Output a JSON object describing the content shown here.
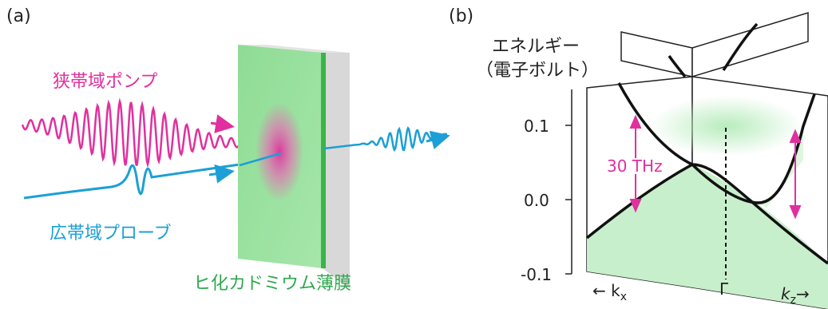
{
  "panel_a": {
    "label": "(a)",
    "pump_label": "狭帯域ポンプ",
    "probe_label": "広帯域プローブ",
    "sample_label": "ヒ化カドミウム薄膜"
  },
  "panel_b": {
    "label": "(b)",
    "energy_label_line1": "エネルギー",
    "energy_label_line2": "（電子ボルト）",
    "yticks": [
      "0.1",
      "0.0",
      "-0.1"
    ],
    "annotation": "30 THz",
    "gamma_label": "Γ",
    "kx_label": "← k",
    "kx_sub": "x",
    "kz_label": "k",
    "kz_sub": "z",
    "kz_arrow": "→"
  },
  "colors": {
    "pump": "#e0309e",
    "probe": "#1c9fd6",
    "film": "#2fa84f",
    "fill_green": "#c8efcb",
    "text": "#222222"
  }
}
